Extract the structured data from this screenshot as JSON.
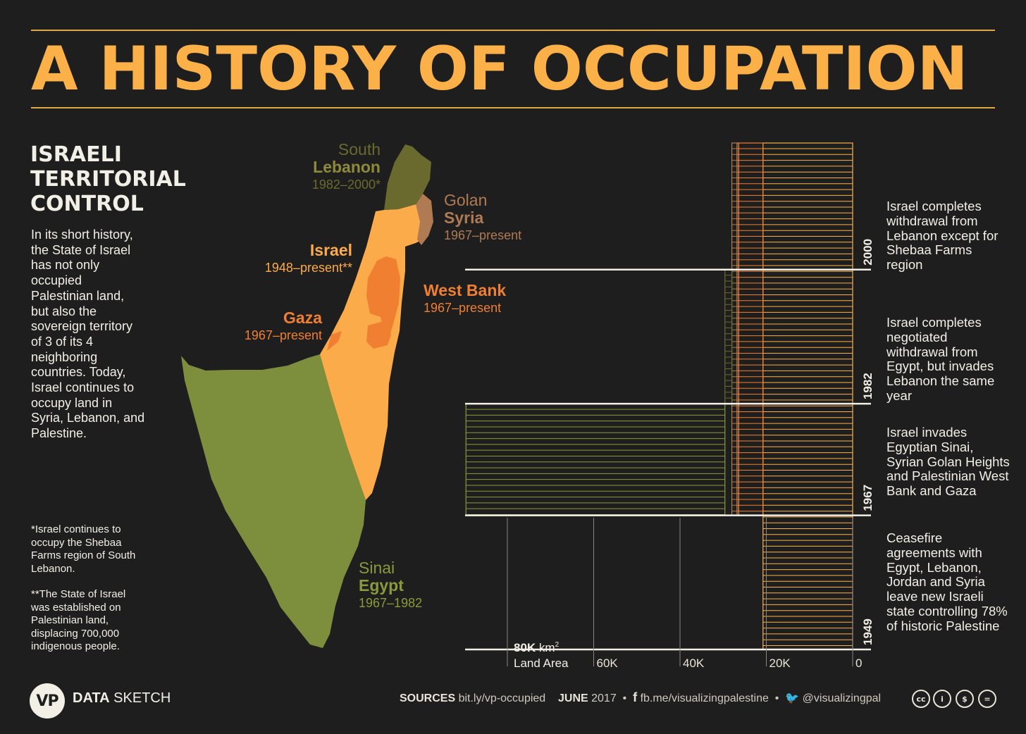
{
  "title": "A HISTORY OF OCCUPATION",
  "subtitle": [
    "ISRAELI",
    "TERRITORIAL",
    "CONTROL"
  ],
  "intro": "In its short history, the State of Israel has not only occupied Palestinian land, but also the sovereign territory of 3 of its 4 neighboring countries. Today, Israel continues to occupy land in Syria, Lebanon, and Palestine.",
  "notes": [
    "*Israel continues to occupy the Shebaa Farms region of South Lebanon.",
    "**The State of Israel was established on Palestinian land, displacing 700,000 indigenous people."
  ],
  "map_labels": {
    "lebanon": {
      "l1": "South",
      "l2": "Lebanon",
      "l3": "1982–2000*"
    },
    "syria": {
      "l1": "Golan",
      "l2": "Syria",
      "l3": "1967–present"
    },
    "israel": {
      "l2": "Israel",
      "l3": "1948–present**"
    },
    "westbank": {
      "l2": "West Bank",
      "l3": "1967–present"
    },
    "gaza": {
      "l2": "Gaza",
      "l3": "1967–present"
    },
    "egypt": {
      "l1": "Sinai",
      "l2": "Egypt",
      "l3": "1967–1982"
    }
  },
  "events": [
    {
      "year": "2000",
      "text": "Israel completes withdrawal from Lebanon except for Shebaa Farms region"
    },
    {
      "year": "1982",
      "text": "Israel completes negotiated withdrawal from Egypt, but invades Lebanon the same year"
    },
    {
      "year": "1967",
      "text": "Israel invades Egyptian Sinai, Syrian Golan Heights and Palestinian West Bank and Gaza"
    },
    {
      "year": "1949",
      "text": "Ceasefire agreements with Egypt, Lebanon, Jordan and Syria leave new Israeli state controlling 78% of historic Palestine"
    }
  ],
  "colors": {
    "israel": "#fbb147",
    "westbank_gaza": "#f07f32",
    "golan": "#b07a52",
    "lebanon": "#6a6a2f",
    "sinai": "#8a9a3a",
    "title": "#fbb147"
  },
  "chart_data": {
    "type": "bar",
    "orientation": "horizontal",
    "xlabel_value": "80K",
    "xlabel_unit": "km",
    "xlabel_sup": "2",
    "xlabel_text": "Land Area",
    "x_ticks": [
      "60K",
      "40K",
      "20K",
      "0"
    ],
    "xlim": [
      80000,
      0
    ],
    "series": [
      {
        "name": "Israel",
        "color": "#fbb147",
        "start_year": 1949,
        "end_year": 2017,
        "value": 20770
      },
      {
        "name": "West Bank",
        "color": "#f07f32",
        "start_year": 1967,
        "end_year": 2017,
        "value": 5655
      },
      {
        "name": "Gaza",
        "color": "#f07f32",
        "start_year": 1967,
        "end_year": 2017,
        "value": 365
      },
      {
        "name": "Golan",
        "color": "#b07a52",
        "start_year": 1967,
        "end_year": 2017,
        "value": 1200
      },
      {
        "name": "South Lebanon",
        "color": "#6a6a2f",
        "start_year": 1982,
        "end_year": 2000,
        "value": 1600
      },
      {
        "name": "Sinai",
        "color": "#8a9a3a",
        "start_year": 1967,
        "end_year": 1982,
        "value": 60000
      }
    ],
    "year_axis": [
      "1949",
      "1967",
      "1982",
      "2000"
    ]
  },
  "footer": {
    "brand_logo": "VP",
    "brand_bold": "DATA",
    "brand_rest": " SKETCH",
    "sources_label": "SOURCES",
    "sources_link": "bit.ly/vp-occupied",
    "date_bold": "JUNE",
    "date_year": " 2017",
    "facebook": "fb.me/visualizingpalestine",
    "twitter": "@visualizingpal",
    "license_icons": [
      "cc",
      "by",
      "nc",
      "nd"
    ]
  }
}
